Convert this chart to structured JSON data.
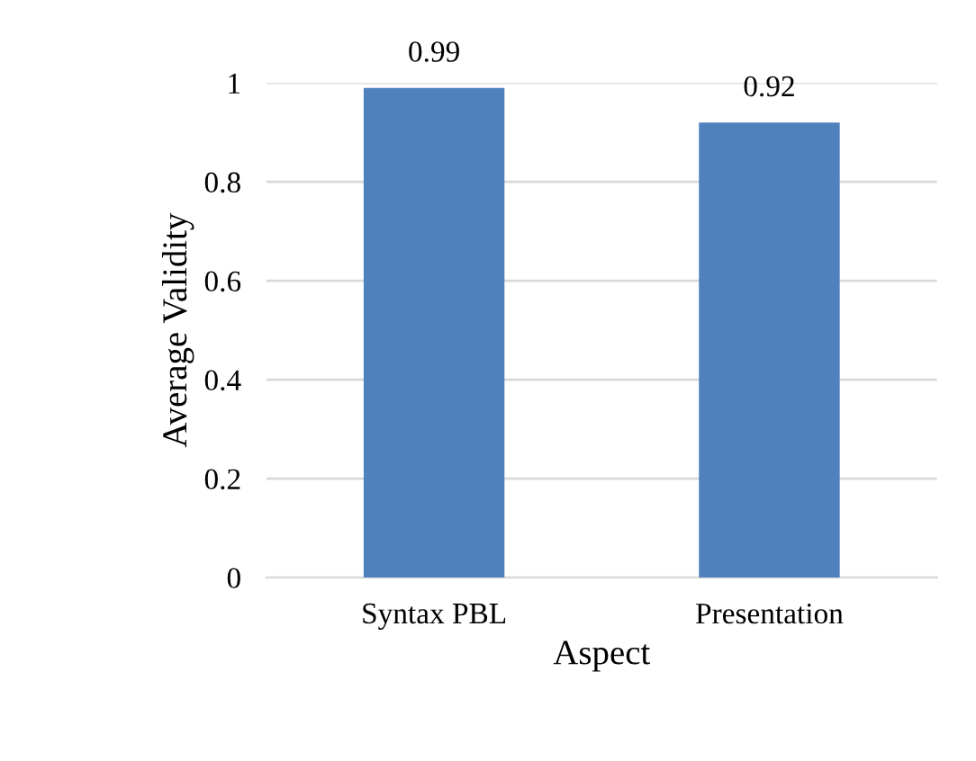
{
  "chart_data": {
    "type": "bar",
    "xlabel": "Aspect",
    "ylabel": "Average Validity",
    "categories": [
      "Syntax PBL",
      "Presentation"
    ],
    "values": [
      0.99,
      0.92
    ],
    "color": "#4f81bd",
    "ylim": [
      0,
      1
    ],
    "yticks": [
      0,
      0.2,
      0.4,
      0.6,
      0.8,
      1
    ],
    "grid": "y",
    "data_labels": true
  }
}
